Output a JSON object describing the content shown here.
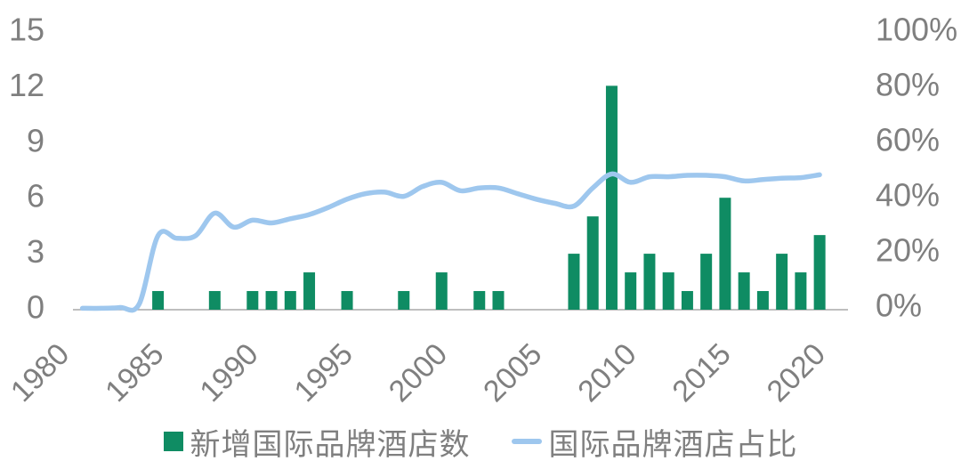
{
  "chart_data": {
    "type": "bar",
    "subtype": "bar+line-dual-axis",
    "x": [
      1980,
      1981,
      1982,
      1983,
      1984,
      1985,
      1986,
      1987,
      1988,
      1989,
      1990,
      1991,
      1992,
      1993,
      1994,
      1995,
      1996,
      1997,
      1998,
      1999,
      2000,
      2001,
      2002,
      2003,
      2004,
      2005,
      2006,
      2007,
      2008,
      2009,
      2010,
      2011,
      2012,
      2013,
      2014,
      2015,
      2016,
      2017,
      2018,
      2019,
      2020
    ],
    "series": [
      {
        "name": "新增国际品牌酒店数",
        "type": "bar",
        "axis": "left",
        "values": [
          0,
          0,
          0,
          0,
          1,
          0,
          0,
          1,
          0,
          1,
          1,
          1,
          2,
          0,
          1,
          0,
          0,
          1,
          0,
          2,
          0,
          1,
          1,
          0,
          0,
          0,
          3,
          5,
          12,
          2,
          3,
          2,
          1,
          3,
          6,
          2,
          1,
          3,
          2,
          4,
          null
        ]
      },
      {
        "name": "国际品牌酒店占比",
        "type": "line",
        "axis": "right",
        "unit": "%",
        "values": [
          0.5,
          0.5,
          0.8,
          2,
          26.5,
          25.5,
          26.5,
          34.5,
          29.5,
          32,
          31,
          32.5,
          34,
          36.5,
          39.5,
          41.5,
          42,
          40.5,
          44,
          45.5,
          42.5,
          43.5,
          43.5,
          41.5,
          39.5,
          38,
          37,
          43.5,
          48.5,
          45.5,
          47.5,
          47.5,
          48,
          48,
          47.5,
          46,
          46.5,
          47,
          47.2,
          48.2,
          null
        ]
      }
    ],
    "left_axis": {
      "min": 0,
      "max": 15,
      "ticks": [
        0,
        3,
        6,
        9,
        12,
        15
      ]
    },
    "right_axis": {
      "min": 0,
      "max": 100,
      "ticks": [
        0,
        20,
        40,
        60,
        80,
        100
      ],
      "tick_suffix": "%"
    },
    "x_ticks": [
      "1980",
      "1985",
      "1990",
      "1995",
      "2000",
      "2005",
      "2010",
      "2015",
      "2020"
    ],
    "grid": "off",
    "legend_position": "bottom",
    "title": ""
  },
  "legend": {
    "items": [
      {
        "label": "新增国际品牌酒店数",
        "marker": "bar-swatch"
      },
      {
        "label": "国际品牌酒店占比",
        "marker": "line-swatch"
      }
    ]
  },
  "colors": {
    "bar": "#0F8C63",
    "line": "#9EC7EE",
    "axis_text": "#7F7F7F",
    "axis_line": "#A9A9A9",
    "background": "#FFFFFF"
  }
}
